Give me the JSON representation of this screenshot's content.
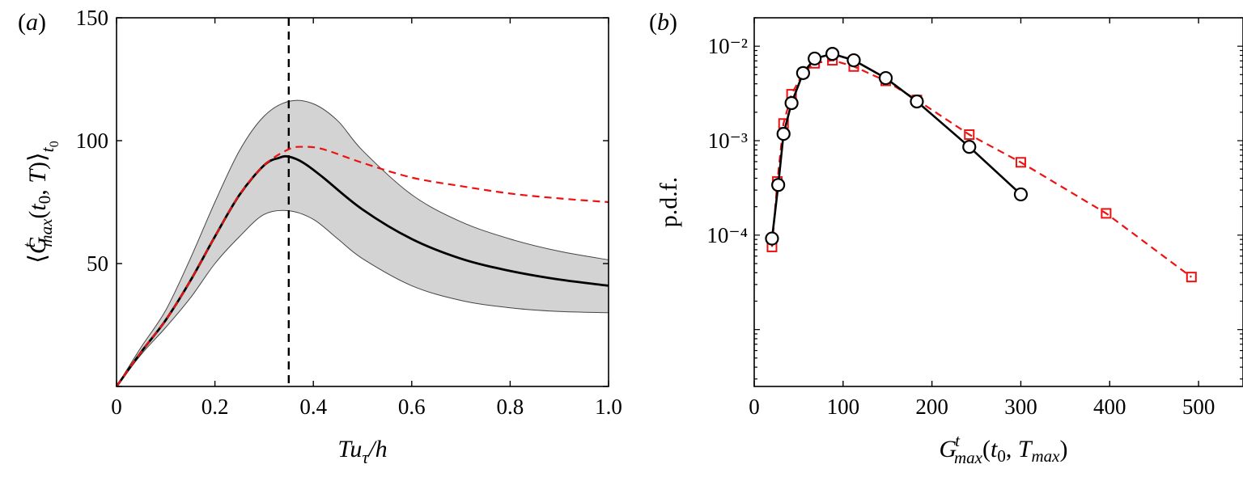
{
  "colors": {
    "mean": "#000000",
    "alt": "#ee1111",
    "band": "#d3d3d3",
    "band_edge": "#444444",
    "marker_face": "#ffffff"
  },
  "chart_data": [
    {
      "panel": "(a)",
      "panel_letter": "a",
      "type": "line",
      "xlabel": "Tuτ/h",
      "ylabel": "⟨Gᵗmax(t0, T)⟩t0",
      "xlim": [
        0,
        1.0
      ],
      "ylim": [
        0,
        150
      ],
      "xticks": [
        0,
        0.2,
        0.4,
        0.6,
        0.8,
        1.0
      ],
      "xtick_labels": [
        "0",
        "0.2",
        "0.4",
        "0.6",
        "0.8",
        "1.0"
      ],
      "yticks": [
        0,
        50,
        100,
        150
      ],
      "ytick_labels": [
        "",
        "50",
        "100",
        "150"
      ],
      "vline_x": 0.35,
      "series": [
        {
          "style": "solid-black",
          "x": [
            0,
            0.05,
            0.1,
            0.15,
            0.2,
            0.25,
            0.3,
            0.33,
            0.35,
            0.38,
            0.42,
            0.5,
            0.6,
            0.7,
            0.8,
            0.9,
            1.0
          ],
          "y": [
            0,
            14,
            27,
            43,
            61,
            78,
            90,
            93,
            93.5,
            91,
            85,
            72,
            60,
            52,
            47,
            43.5,
            41
          ]
        },
        {
          "style": "dashed-red",
          "x": [
            0,
            0.05,
            0.1,
            0.15,
            0.2,
            0.25,
            0.3,
            0.35,
            0.38,
            0.42,
            0.5,
            0.6,
            0.7,
            0.8,
            0.9,
            1.0
          ],
          "y": [
            0,
            14,
            27,
            43,
            61,
            78,
            90,
            96.5,
            97.5,
            96.5,
            91,
            85,
            81.5,
            78.5,
            76.5,
            75
          ]
        }
      ],
      "band": {
        "x": [
          0,
          0.05,
          0.1,
          0.15,
          0.2,
          0.25,
          0.3,
          0.35,
          0.4,
          0.45,
          0.5,
          0.6,
          0.7,
          0.8,
          0.9,
          1.0
        ],
        "upper": [
          0,
          16,
          31,
          52,
          75,
          96,
          110,
          116,
          115,
          108,
          96,
          78,
          67,
          60,
          55,
          51.5
        ],
        "lower": [
          0,
          13,
          24,
          36,
          50,
          61,
          70,
          71.5,
          68,
          60,
          52,
          41,
          35,
          32,
          30.5,
          30
        ]
      }
    },
    {
      "panel": "(b)",
      "panel_letter": "b",
      "type": "line",
      "xlabel": "Gᵗmax(t0, Tmax)",
      "ylabel": "p.d.f.",
      "yscale": "log",
      "xlim": [
        0,
        550
      ],
      "ylim": [
        2.5e-06,
        0.02
      ],
      "xticks": [
        0,
        100,
        200,
        300,
        400,
        500
      ],
      "xtick_labels": [
        "0",
        "100",
        "200",
        "300",
        "400",
        "500"
      ],
      "yticks": [
        0.0001,
        0.001,
        0.01
      ],
      "ytick_labels": [
        "10⁻⁴",
        "10⁻³",
        "10⁻²"
      ],
      "series": [
        {
          "style": "solid-black-circles",
          "x": [
            20,
            27,
            33,
            42,
            55,
            68,
            88,
            112,
            148,
            183,
            242,
            300
          ],
          "y": [
            9.2e-05,
            0.00034,
            0.00118,
            0.0025,
            0.0052,
            0.0074,
            0.0083,
            0.0071,
            0.0046,
            0.0026,
            0.00086,
            0.00027
          ]
        },
        {
          "style": "dashed-red-squares",
          "x": [
            20,
            26,
            33,
            42,
            55,
            68,
            88,
            112,
            148,
            183,
            242,
            300,
            396,
            492
          ],
          "y": [
            7.5e-05,
            0.00037,
            0.00152,
            0.0031,
            0.0052,
            0.0066,
            0.0071,
            0.0061,
            0.0043,
            0.0027,
            0.00116,
            0.00059,
            0.00017,
            3.6e-05
          ]
        }
      ]
    }
  ]
}
